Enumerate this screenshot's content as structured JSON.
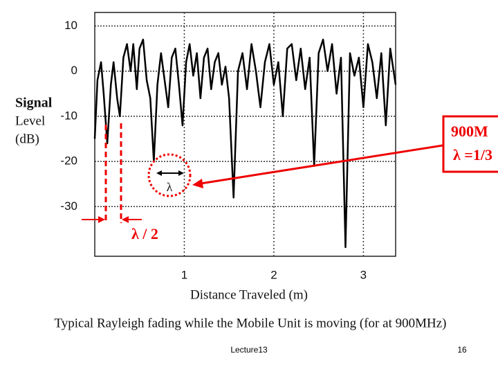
{
  "chart_data": {
    "type": "line",
    "y_label": [
      "Signal",
      "Level",
      "(dB)"
    ],
    "x_label": "Distance Traveled (m)",
    "caption": "Typical Rayleigh fading while the Mobile Unit is moving (for at 900MHz)",
    "footer": "Lecture13",
    "page_number": "16",
    "annotations": [
      "900M",
      "λ =1/3",
      "λ / 2",
      "λ"
    ],
    "xlim": [
      0,
      3.36
    ],
    "xticks": [
      1,
      2,
      3
    ],
    "ylim": [
      -41,
      13
    ],
    "yticks": [
      10,
      0,
      -10,
      -20,
      -30
    ],
    "grid": true,
    "series": [
      {
        "color": "#000000",
        "x": [
          0,
          0.03,
          0.07,
          0.1,
          0.14,
          0.18,
          0.21,
          0.25,
          0.28,
          0.32,
          0.36,
          0.4,
          0.43,
          0.47,
          0.5,
          0.54,
          0.58,
          0.62,
          0.66,
          0.7,
          0.74,
          0.78,
          0.82,
          0.86,
          0.9,
          0.94,
          0.98,
          1.02,
          1.06,
          1.1,
          1.14,
          1.18,
          1.22,
          1.26,
          1.3,
          1.34,
          1.38,
          1.42,
          1.46,
          1.5,
          1.55,
          1.6,
          1.65,
          1.7,
          1.75,
          1.8,
          1.85,
          1.9,
          1.95,
          2.0,
          2.05,
          2.1,
          2.15,
          2.2,
          2.25,
          2.3,
          2.35,
          2.4,
          2.45,
          2.5,
          2.55,
          2.6,
          2.65,
          2.7,
          2.75,
          2.8,
          2.85,
          2.9,
          2.95,
          3.0,
          3.05,
          3.1,
          3.15,
          3.2,
          3.25,
          3.3,
          3.36
        ],
        "values": [
          -15,
          -2,
          2,
          -5,
          -16,
          -3,
          2,
          -6,
          -10,
          3,
          6,
          0,
          6,
          -4,
          5,
          7,
          -2,
          -6,
          -20,
          -3,
          4,
          -2,
          -8,
          3,
          5,
          -3,
          -12,
          2,
          6,
          -1,
          4,
          -6,
          3,
          5,
          -4,
          2,
          4,
          -3,
          1,
          -6,
          -28,
          0,
          4,
          -4,
          6,
          0,
          -8,
          2,
          6,
          -3,
          2,
          -10,
          5,
          6,
          -2,
          5,
          -4,
          3,
          -21,
          4,
          7,
          0,
          6,
          -5,
          3,
          -39,
          4,
          -1,
          3,
          -8,
          6,
          2,
          -6,
          4,
          -12,
          5,
          -3
        ]
      }
    ]
  }
}
